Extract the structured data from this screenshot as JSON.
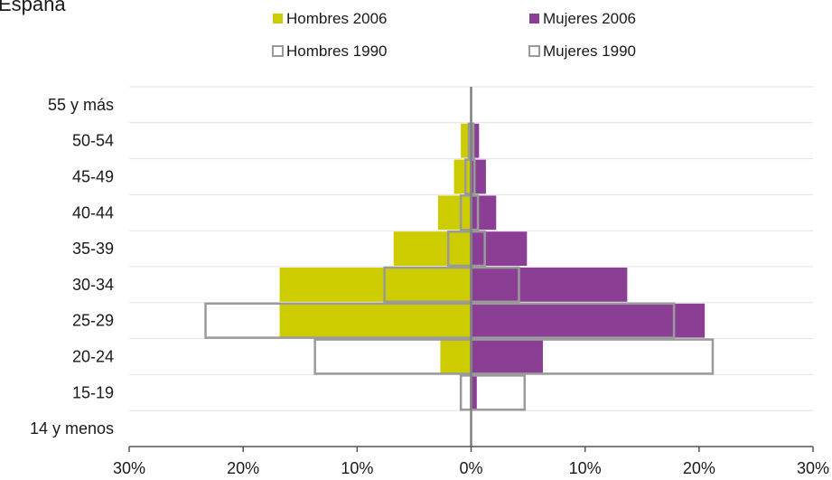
{
  "chart_data": {
    "type": "bar",
    "orientation": "horizontal-pyramid",
    "title": "España",
    "categories": [
      "14  y menos",
      "15-19",
      "20-24",
      "25-29",
      "30-34",
      "35-39",
      "40-44",
      "45-49",
      "50-54",
      "55 y más"
    ],
    "series": [
      {
        "name": "Hombres 2006",
        "side": "left",
        "style": "filled",
        "color": "#cccc00",
        "values": [
          0,
          0,
          2.7,
          16.8,
          16.8,
          6.8,
          2.9,
          1.5,
          0.9,
          0
        ]
      },
      {
        "name": "Mujeres 2006",
        "side": "right",
        "style": "filled",
        "color": "#8b3f94",
        "values": [
          0,
          0.5,
          6.3,
          20.5,
          13.7,
          4.9,
          2.2,
          1.3,
          0.7,
          0
        ]
      },
      {
        "name": "Hombres 1990",
        "side": "left",
        "style": "outline",
        "color": "#9a9a9a",
        "values": [
          0,
          0.9,
          13.7,
          23.3,
          7.6,
          2.0,
          0.9,
          0.5,
          0.2,
          0
        ]
      },
      {
        "name": "Mujeres 1990",
        "side": "right",
        "style": "outline",
        "color": "#9a9a9a",
        "values": [
          0,
          4.7,
          21.2,
          17.8,
          4.2,
          1.2,
          0.6,
          0.3,
          0.2,
          0
        ]
      }
    ],
    "xlim": [
      -30,
      30
    ],
    "x_ticks": [
      {
        "value": -30,
        "label": "30%"
      },
      {
        "value": -20,
        "label": "20%"
      },
      {
        "value": -10,
        "label": "10%"
      },
      {
        "value": 0,
        "label": "0%"
      },
      {
        "value": 10,
        "label": "10%"
      },
      {
        "value": 20,
        "label": "20%"
      },
      {
        "value": 30,
        "label": "30%"
      }
    ],
    "grid": "horizontal",
    "legend_position": "top-center",
    "xlabel": "",
    "ylabel": ""
  }
}
